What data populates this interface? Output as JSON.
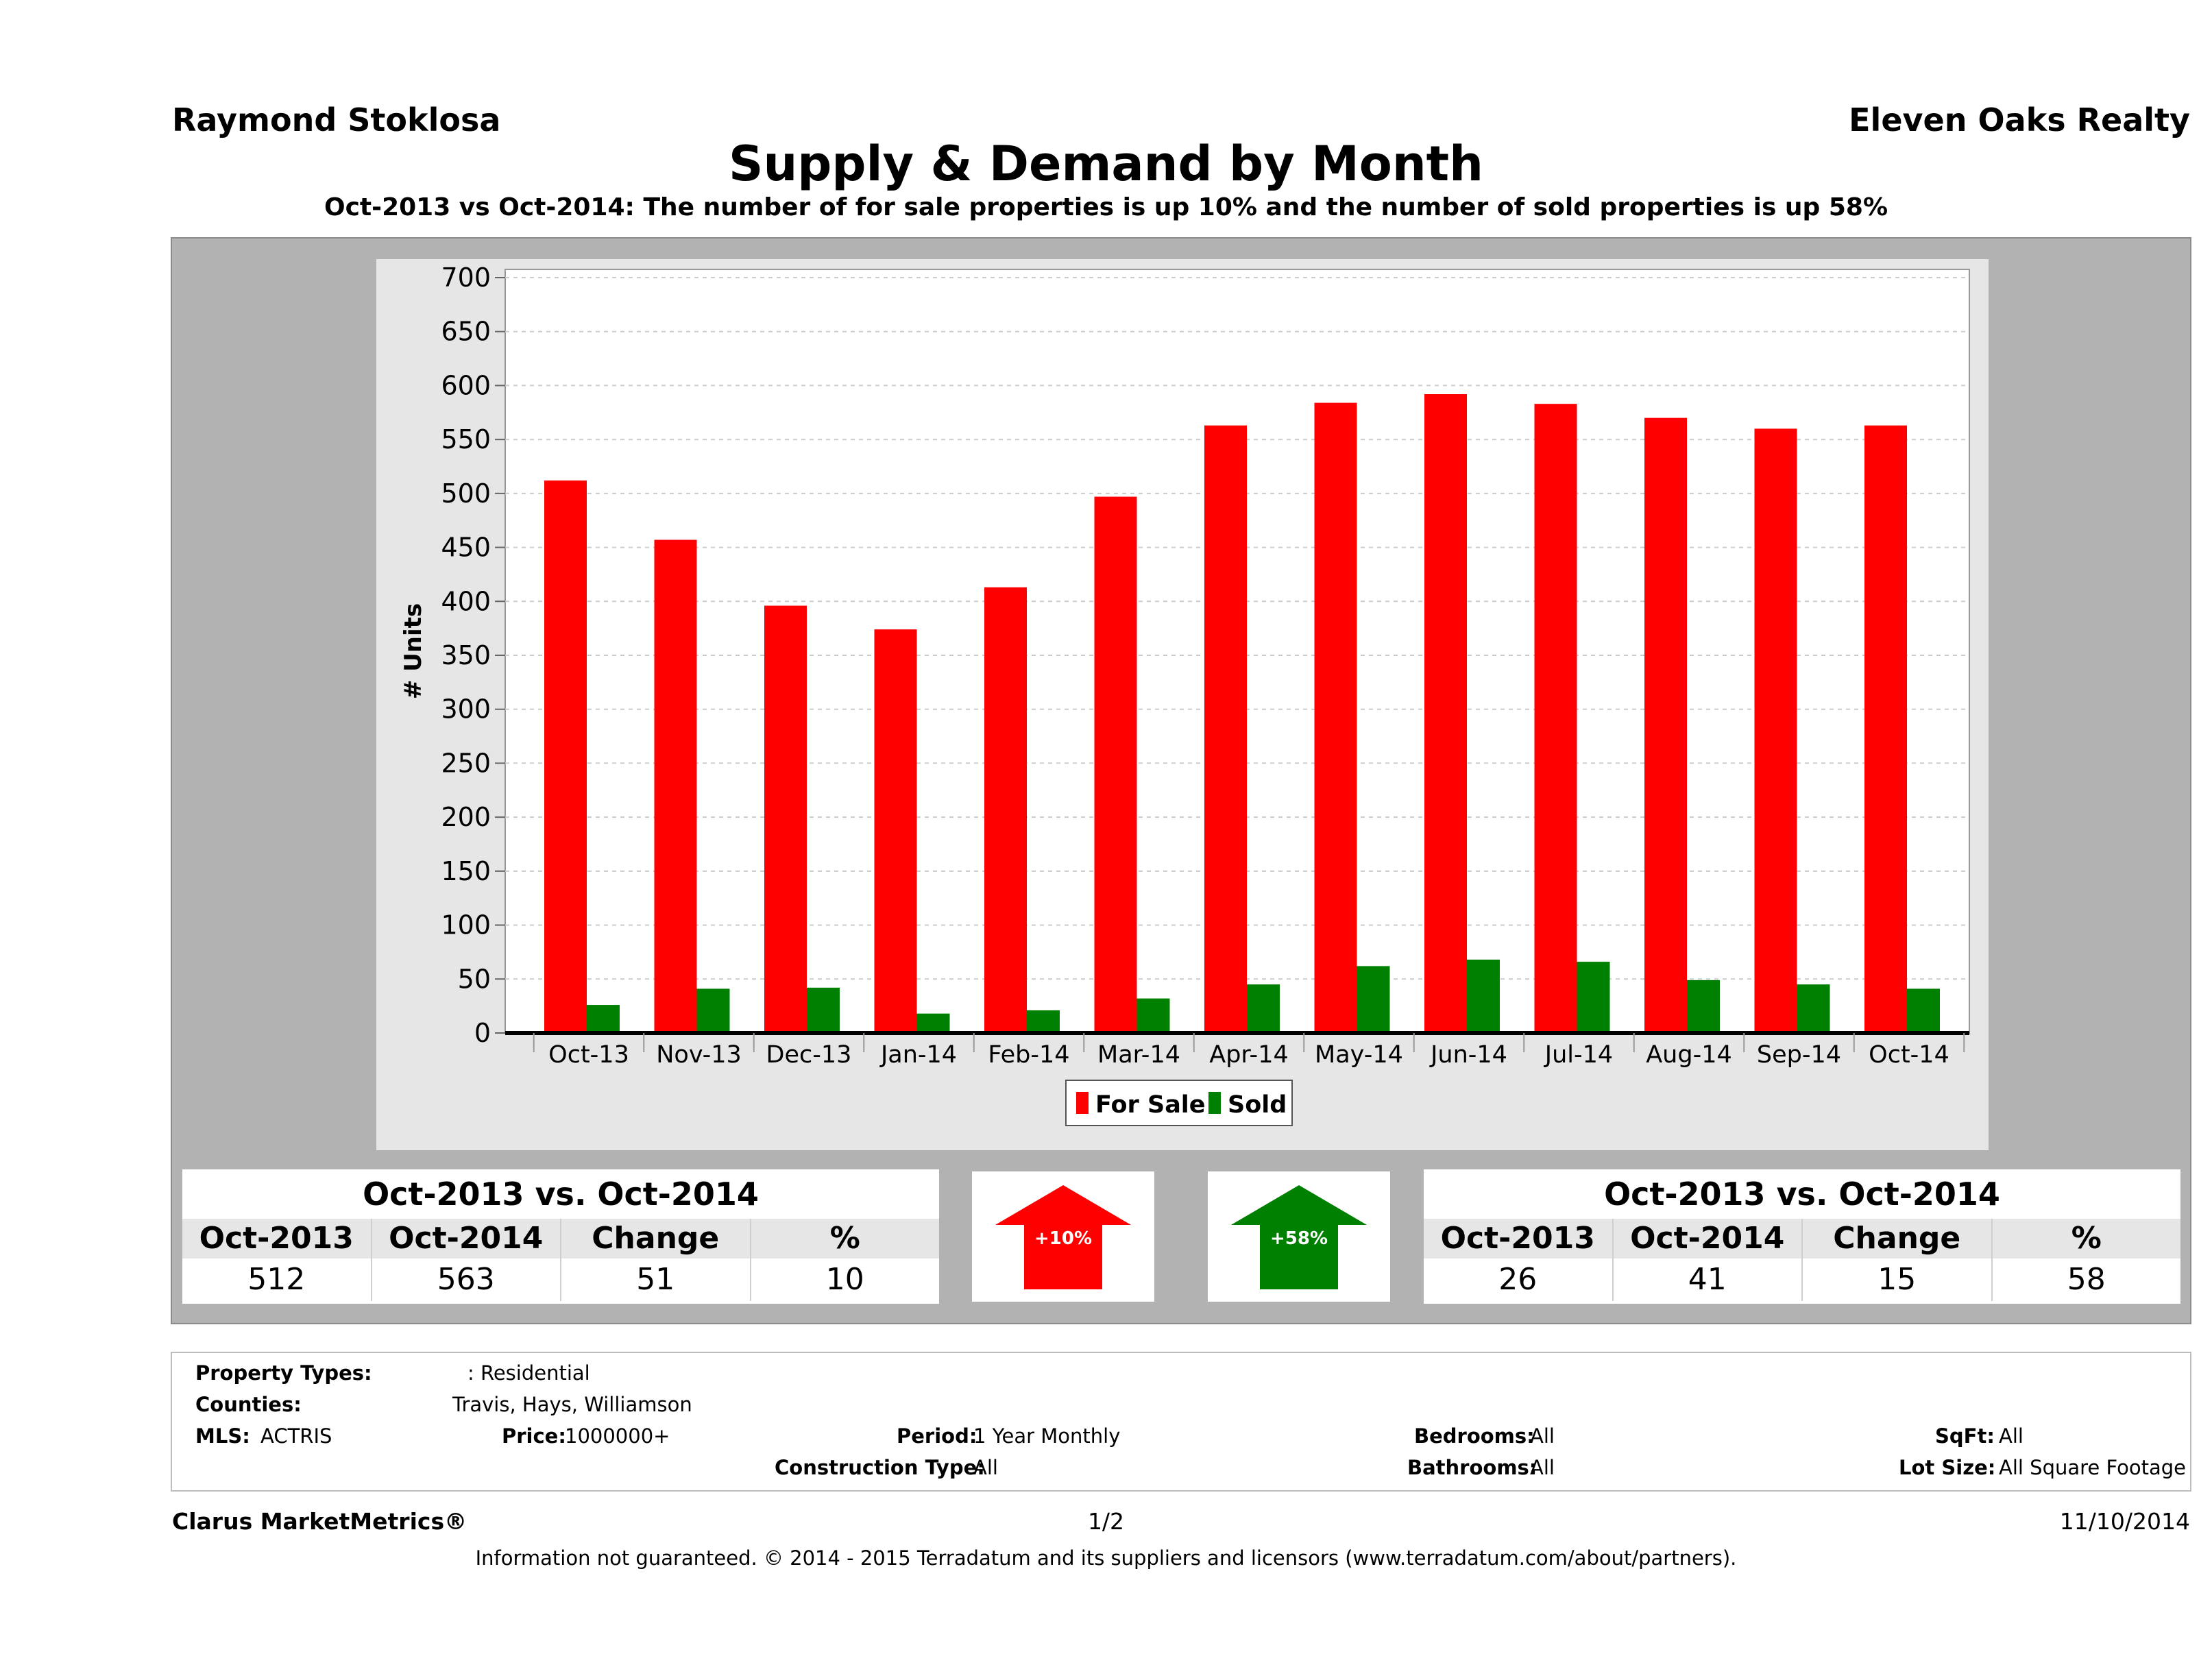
{
  "header": {
    "agent": "Raymond Stoklosa",
    "brokerage": "Eleven Oaks Realty",
    "title": "Supply & Demand by Month",
    "subtitle": "Oct-2013 vs Oct-2014: The number of for sale properties is up 10% and the number of sold properties is up 58%"
  },
  "colors": {
    "for_sale": "#ff0000",
    "sold": "#008000",
    "panel": "#b2b2b2"
  },
  "chart_data": {
    "type": "bar",
    "title": "Supply & Demand by Month",
    "xlabel": "",
    "ylabel": "# Units",
    "ylim": [
      0,
      700
    ],
    "yticks": [
      0,
      50,
      100,
      150,
      200,
      250,
      300,
      350,
      400,
      450,
      500,
      550,
      600,
      650,
      700
    ],
    "grid": true,
    "legend_position": "bottom-center",
    "categories": [
      "Oct-13",
      "Nov-13",
      "Dec-13",
      "Jan-14",
      "Feb-14",
      "Mar-14",
      "Apr-14",
      "May-14",
      "Jun-14",
      "Jul-14",
      "Aug-14",
      "Sep-14",
      "Oct-14"
    ],
    "series": [
      {
        "name": "For Sale",
        "color": "#ff0000",
        "values": [
          512,
          457,
          396,
          374,
          413,
          497,
          563,
          584,
          592,
          583,
          570,
          560,
          563
        ]
      },
      {
        "name": "Sold",
        "color": "#008000",
        "values": [
          26,
          41,
          42,
          18,
          21,
          32,
          45,
          62,
          68,
          66,
          49,
          45,
          41
        ]
      }
    ]
  },
  "for_sale_summary": {
    "heading": "Oct-2013 vs. Oct-2014",
    "labels": [
      "Oct-2013",
      "Oct-2014",
      "Change",
      "%"
    ],
    "values": [
      "512",
      "563",
      "51",
      "10"
    ],
    "arrow_label": "+10%",
    "arrow_color": "#ff0000"
  },
  "sold_summary": {
    "heading": "Oct-2013 vs. Oct-2014",
    "labels": [
      "Oct-2013",
      "Oct-2014",
      "Change",
      "%"
    ],
    "values": [
      "26",
      "41",
      "15",
      "58"
    ],
    "arrow_label": "+58%",
    "arrow_color": "#008000"
  },
  "criteria": {
    "property_types_label": "Property Types:",
    "property_types_value": ": Residential",
    "counties_label": "Counties:",
    "counties_value": "Travis, Hays, Williamson",
    "mls_label": "MLS:",
    "mls_value": "ACTRIS",
    "price_label": "Price:",
    "price_value": "1000000+",
    "period_label": "Period:",
    "period_value": "1 Year Monthly",
    "construction_label": "Construction Type:",
    "construction_value": "All",
    "bedrooms_label": "Bedrooms:",
    "bedrooms_value": "All",
    "bathrooms_label": "Bathrooms:",
    "bathrooms_value": "All",
    "sqft_label": "SqFt:",
    "sqft_value": "All",
    "lotsize_label": "Lot Size:",
    "lotsize_value": "All Square Footage"
  },
  "footer": {
    "product": "Clarus MarketMetrics®",
    "page": "1/2",
    "date": "11/10/2014",
    "disclaimer": "Information not guaranteed. © 2014 - 2015 Terradatum and its suppliers and licensors (www.terradatum.com/about/partners)."
  }
}
